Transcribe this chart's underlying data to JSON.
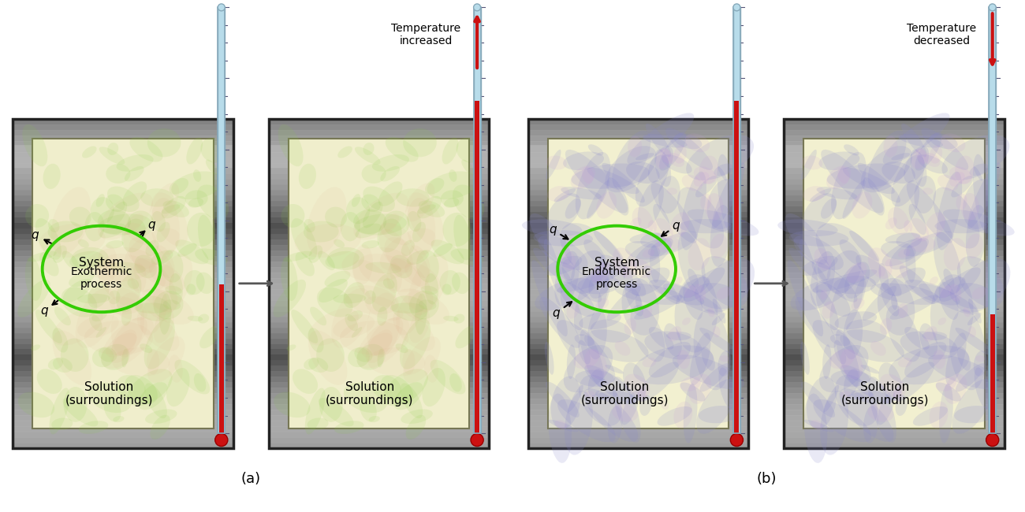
{
  "title_a": "(a)",
  "title_b": "(b)",
  "exo_system_label": "System",
  "exo_process_label": "Exothermic\nprocess",
  "endo_system_label": "System",
  "endo_process_label": "Endothermic\nprocess",
  "solution_label": "Solution\n(surroundings)",
  "temp_increased_label": "Temperature\nincreased",
  "temp_decreased_label": "Temperature\ndecreased",
  "q_label": "q",
  "thermometer_tube_color": "#b8dcea",
  "thermometer_mercury_color": "#cc1111",
  "circle_color": "#33cc00",
  "bg_color": "#ffffff",
  "metal_dark": "#444444",
  "metal_mid": "#888888",
  "metal_light": "#cccccc",
  "inner_box_exo": "#f0eecc",
  "inner_box_endo": "#f2f0d0",
  "exo_wave_color": "#88cc44",
  "endo_wave_color": "#aaaadd",
  "solution_fontsize": 11,
  "label_fontsize": 13
}
